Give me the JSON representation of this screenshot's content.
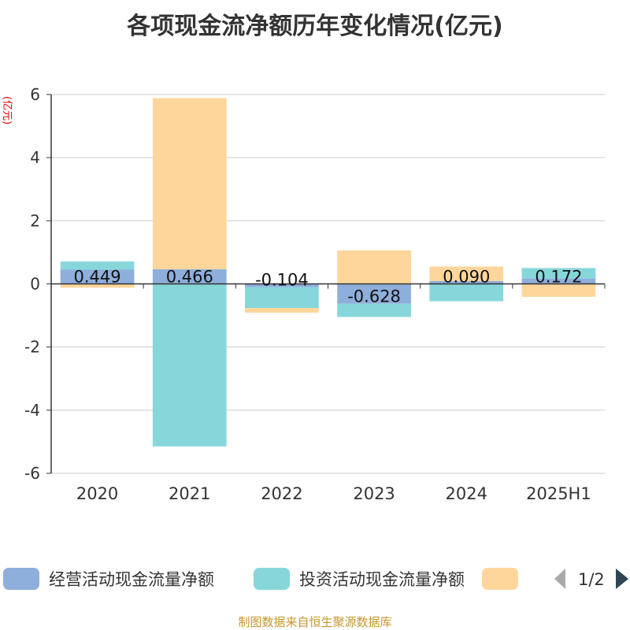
{
  "title": "各项现金流净额历年变化情况(亿元)",
  "source_note": "制图数据来自恒生聚源数据库",
  "chart_data": {
    "type": "bar",
    "stacked": true,
    "categories": [
      "2020",
      "2021",
      "2022",
      "2023",
      "2024",
      "2025H1"
    ],
    "ylabel": "(亿元)",
    "ylim": [
      -6,
      6
    ],
    "yticks": [
      6,
      4,
      2,
      0,
      -2,
      -4,
      -6
    ],
    "grid": true,
    "legend_position": "bottom",
    "series": [
      {
        "name": "经营活动现金流量净额",
        "color": "#8eaedc",
        "values": [
          0.449,
          0.466,
          -0.104,
          -0.628,
          0.09,
          0.172
        ],
        "data_labels": [
          "0.449",
          "0.466",
          "-0.104",
          "-0.628",
          "0.090",
          "0.172"
        ]
      },
      {
        "name": "投资活动现金流量净额",
        "color": "#87d7da",
        "values": [
          0.26,
          -5.15,
          -0.66,
          -0.42,
          -0.55,
          0.33
        ]
      },
      {
        "name": "",
        "color": "#fed69b",
        "values": [
          -0.12,
          5.42,
          -0.15,
          1.06,
          0.46,
          -0.41
        ]
      }
    ],
    "legend_page": "1/2"
  }
}
